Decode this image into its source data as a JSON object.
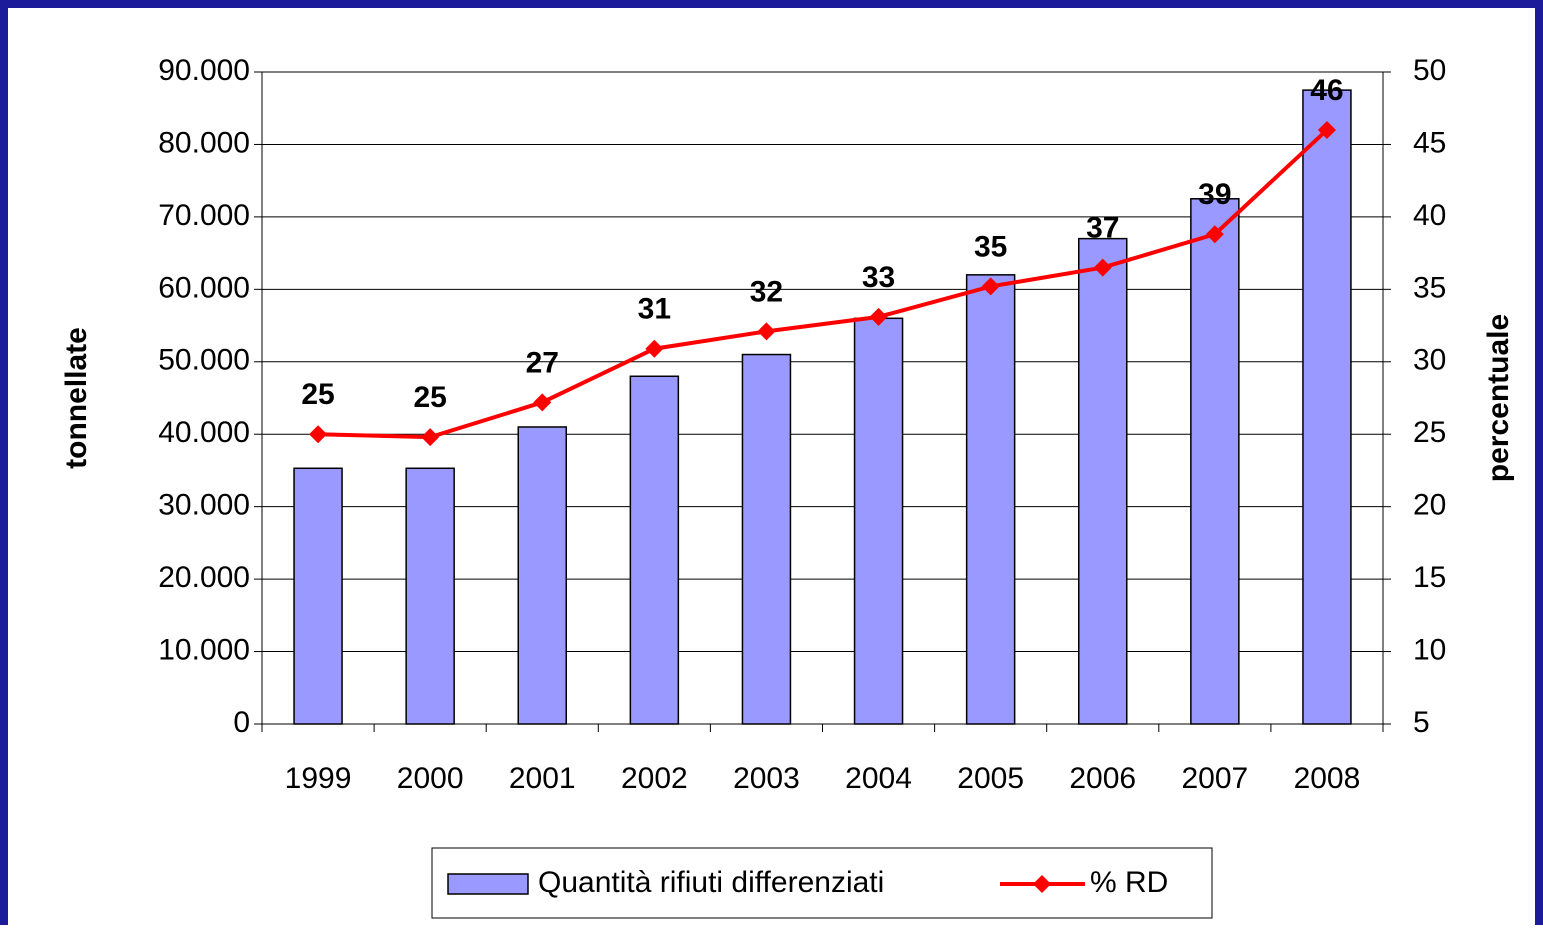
{
  "chart_data": {
    "type": "bar",
    "categories": [
      "1999",
      "2000",
      "2001",
      "2002",
      "2003",
      "2004",
      "2005",
      "2006",
      "2007",
      "2008"
    ],
    "series": [
      {
        "name": "Quantità rifiuti differenziati",
        "type": "bar",
        "color": "#9999ff",
        "values": [
          35300,
          35300,
          41000,
          48000,
          51000,
          56000,
          62000,
          67000,
          72500,
          87500
        ]
      },
      {
        "name": "% RD",
        "type": "line",
        "axis": "y2",
        "color": "#ff0000",
        "values": [
          25,
          24.8,
          27.2,
          30.9,
          32.1,
          33.1,
          35.2,
          36.5,
          38.8,
          46
        ],
        "value_labels": [
          "25",
          "25",
          "27",
          "31",
          "32",
          "33",
          "35",
          "37",
          "39",
          "46"
        ]
      }
    ],
    "y_label": "tonnellate",
    "y2_label": "percentuale",
    "ylim": [
      0,
      90000
    ],
    "yticks": [
      0,
      {
        "value": 10000,
        "label": "10.000"
      },
      {
        "value": 20000,
        "label": "20.000"
      },
      {
        "value": 30000,
        "label": "30.000"
      },
      {
        "value": 40000,
        "label": "40.000"
      },
      {
        "value": 50000,
        "label": "50.000"
      },
      {
        "value": 60000,
        "label": "60.000"
      },
      {
        "value": 70000,
        "label": "70.000"
      },
      {
        "value": 80000,
        "label": "80.000"
      },
      {
        "value": 90000,
        "label": "90.000"
      }
    ],
    "y2lim": [
      5,
      50
    ],
    "y2ticks": [
      5,
      10,
      15,
      20,
      25,
      30,
      35,
      40,
      45,
      50
    ],
    "grid": true,
    "legend": "bottom"
  }
}
